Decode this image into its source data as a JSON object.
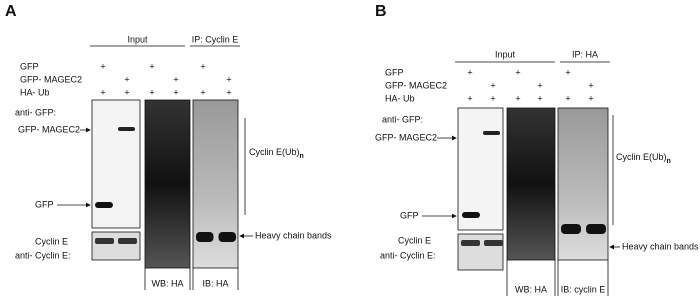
{
  "panels": [
    {
      "letter": "A",
      "input": "Input",
      "ip": "IP: Cyclin E",
      "rows": [
        {
          "label": "GFP",
          "marks": [
            "+",
            null,
            "+",
            null,
            "+",
            null
          ]
        },
        {
          "label": "GFP- MAGEC2",
          "marks": [
            null,
            "+",
            null,
            "+",
            null,
            "+"
          ]
        },
        {
          "label": "HA- Ub",
          "marks": [
            "+",
            "+",
            "+",
            "+",
            "+",
            "+"
          ]
        }
      ],
      "anti_gfp": "anti- GFP:",
      "magec2": "GFP- MAGEC2",
      "gfp": "GFP",
      "cyclin": "Cyclin E",
      "anti_cyclin": "anti- Cyclin E:",
      "wb": "WB: HA",
      "ib": "IB: HA",
      "ub": {
        "text": "Cyclin E(Ub)",
        "subscript": "n"
      },
      "heavy": "Heavy chain bands"
    },
    {
      "letter": "B",
      "input": "Input",
      "ip": "IP: HA",
      "rows": [
        {
          "label": "GFP",
          "marks": [
            "+",
            null,
            "+",
            null,
            "+",
            null
          ]
        },
        {
          "label": "GFP- MAGEC2",
          "marks": [
            null,
            "+",
            null,
            "+",
            null,
            "+"
          ]
        },
        {
          "label": "HA- Ub",
          "marks": [
            "+",
            "+",
            "+",
            "+",
            "+",
            "+"
          ]
        }
      ],
      "anti_gfp": "anti- GFP:",
      "magec2": "GFP- MAGEC2",
      "gfp": "GFP",
      "cyclin": "Cyclin E",
      "anti_cyclin": "anti- Cyclin E:",
      "wb": "WB: HA",
      "ib": "IB: cyclin E",
      "ub": {
        "text": "Cyclin E(Ub)",
        "subscript": "n"
      },
      "heavy": "Heavy chain bands"
    }
  ]
}
